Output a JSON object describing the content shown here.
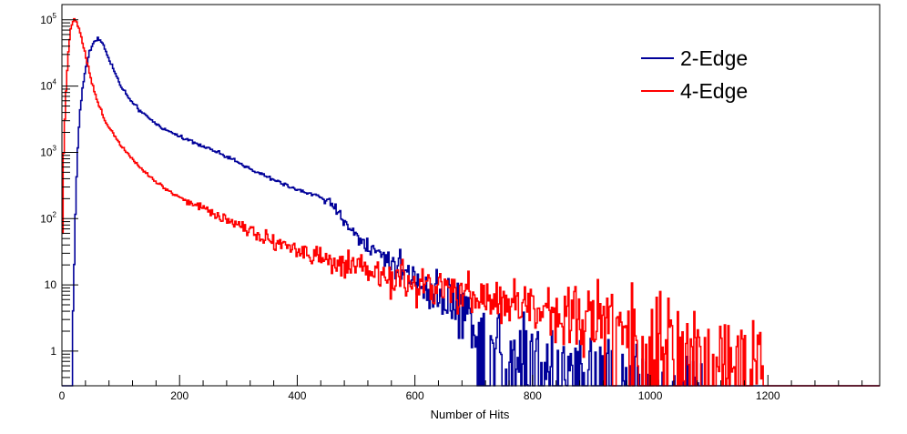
{
  "chart_data": {
    "type": "line",
    "title": "",
    "xlabel": "Number of Hits",
    "ylabel": "",
    "xlim": [
      0,
      1390
    ],
    "ylim": [
      0.3,
      170000
    ],
    "y_scale": "log",
    "grid": false,
    "legend_position": "top-right",
    "x_ticks": [
      0,
      200,
      400,
      600,
      800,
      1000,
      1200
    ],
    "y_ticks": [
      {
        "value": 1,
        "base": "1",
        "exp": ""
      },
      {
        "value": 10,
        "base": "10",
        "exp": ""
      },
      {
        "value": 100,
        "base": "10",
        "exp": "2"
      },
      {
        "value": 1000,
        "base": "10",
        "exp": "3"
      },
      {
        "value": 10000,
        "base": "10",
        "exp": "4"
      },
      {
        "value": 100000,
        "base": "10",
        "exp": "5"
      }
    ],
    "series": [
      {
        "name": "2-Edge",
        "color": "#000099",
        "points": [
          [
            15,
            0.3
          ],
          [
            18,
            2
          ],
          [
            22,
            60
          ],
          [
            26,
            800
          ],
          [
            30,
            3500
          ],
          [
            35,
            9000
          ],
          [
            40,
            18000
          ],
          [
            45,
            28000
          ],
          [
            50,
            38000
          ],
          [
            55,
            48000
          ],
          [
            60,
            52000
          ],
          [
            65,
            50000
          ],
          [
            70,
            42000
          ],
          [
            80,
            26000
          ],
          [
            90,
            16000
          ],
          [
            100,
            10000
          ],
          [
            120,
            5500
          ],
          [
            140,
            3700
          ],
          [
            160,
            2700
          ],
          [
            180,
            2100
          ],
          [
            200,
            1750
          ],
          [
            250,
            1150
          ],
          [
            300,
            700
          ],
          [
            350,
            420
          ],
          [
            400,
            270
          ],
          [
            430,
            230
          ],
          [
            450,
            190
          ],
          [
            480,
            95
          ],
          [
            500,
            55
          ],
          [
            520,
            38
          ],
          [
            550,
            26
          ],
          [
            580,
            17
          ],
          [
            600,
            12
          ],
          [
            630,
            8
          ],
          [
            660,
            5.5
          ],
          [
            690,
            3.5
          ],
          [
            720,
            2.5
          ],
          [
            750,
            1.6
          ],
          [
            780,
            1.1
          ],
          [
            800,
            0.9
          ],
          [
            850,
            0.65
          ],
          [
            900,
            0.5
          ],
          [
            950,
            0.4
          ],
          [
            1000,
            0.35
          ],
          [
            1100,
            0.3
          ],
          [
            1160,
            0.3
          ],
          [
            1390,
            0.3
          ]
        ]
      },
      {
        "name": "4-Edge",
        "color": "#ff0000",
        "points": [
          [
            0,
            15
          ],
          [
            3,
            1000
          ],
          [
            6,
            6000
          ],
          [
            10,
            25000
          ],
          [
            15,
            75000
          ],
          [
            20,
            105000
          ],
          [
            25,
            95000
          ],
          [
            30,
            70000
          ],
          [
            40,
            30000
          ],
          [
            50,
            12000
          ],
          [
            60,
            6000
          ],
          [
            70,
            3500
          ],
          [
            80,
            2400
          ],
          [
            100,
            1300
          ],
          [
            120,
            800
          ],
          [
            140,
            520
          ],
          [
            160,
            360
          ],
          [
            180,
            270
          ],
          [
            200,
            210
          ],
          [
            250,
            130
          ],
          [
            300,
            82
          ],
          [
            350,
            50
          ],
          [
            400,
            34
          ],
          [
            450,
            22
          ],
          [
            500,
            17
          ],
          [
            550,
            13
          ],
          [
            600,
            10
          ],
          [
            650,
            8
          ],
          [
            700,
            6.5
          ],
          [
            800,
            4.5
          ],
          [
            900,
            3.2
          ],
          [
            1000,
            2.4
          ],
          [
            1100,
            1.6
          ],
          [
            1150,
            1.1
          ],
          [
            1200,
            0.3
          ],
          [
            1390,
            0.3
          ]
        ]
      }
    ]
  }
}
